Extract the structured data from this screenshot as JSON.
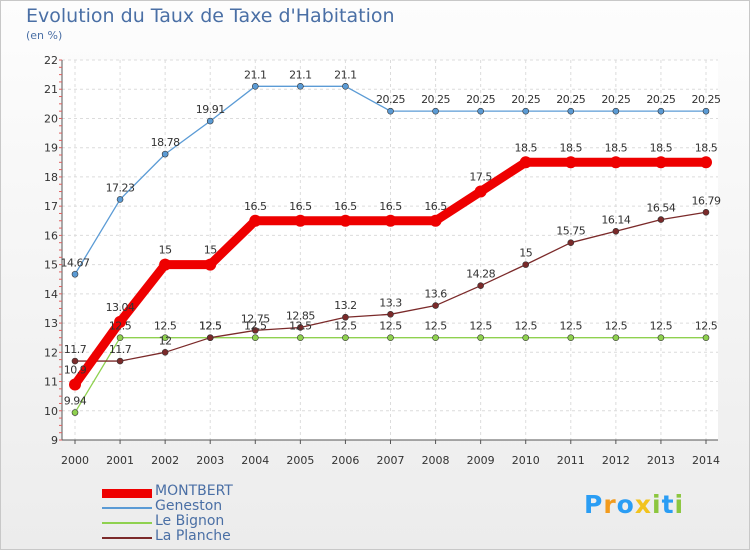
{
  "chart_data": {
    "type": "line",
    "title": "Evolution du Taux de Taxe d'Habitation",
    "subtitle": "(en %)",
    "ylim": [
      9,
      22
    ],
    "yticks": [
      9,
      10,
      11,
      12,
      13,
      14,
      15,
      16,
      17,
      18,
      19,
      20,
      21,
      22
    ],
    "categories": [
      "2000",
      "2001",
      "2002",
      "2003",
      "2004",
      "2005",
      "2006",
      "2007",
      "2008",
      "2009",
      "2010",
      "2011",
      "2012",
      "2013",
      "2014"
    ],
    "series": [
      {
        "name": "MONTBERT",
        "color": "#ee0000",
        "emphasis": true,
        "values": [
          10.9,
          13.04,
          15,
          15,
          16.5,
          16.5,
          16.5,
          16.5,
          16.5,
          17.5,
          18.5,
          18.5,
          18.5,
          18.5,
          18.5
        ],
        "labels": [
          "10.9",
          "13.04",
          "15",
          "15",
          "16.5",
          "16.5",
          "16.5",
          "16.5",
          "16.5",
          "17.5",
          "18.5",
          "18.5",
          "18.5",
          "18.5",
          "18.5"
        ]
      },
      {
        "name": "Geneston",
        "color": "#5b9bd5",
        "values": [
          14.67,
          17.23,
          18.78,
          19.91,
          21.1,
          21.1,
          21.1,
          20.25,
          20.25,
          20.25,
          20.25,
          20.25,
          20.25,
          20.25,
          20.25
        ],
        "labels": [
          "14.67",
          "17.23",
          "18.78",
          "19.91",
          "21.1",
          "21.1",
          "21.1",
          "20.25",
          "20.25",
          "20.25",
          "20.25",
          "20.25",
          "20.25",
          "20.25",
          "20.25"
        ]
      },
      {
        "name": "Le Bignon",
        "color": "#8fd14f",
        "values": [
          9.94,
          12.5,
          12.5,
          12.5,
          12.5,
          12.5,
          12.5,
          12.5,
          12.5,
          12.5,
          12.5,
          12.5,
          12.5,
          12.5,
          12.5
        ],
        "labels": [
          "9.94",
          "12.5",
          "12.5",
          "12.5",
          "12.5",
          "12.5",
          "12.5",
          "12.5",
          "12.5",
          "12.5",
          "12.5",
          "12.5",
          "12.5",
          "12.5",
          "12.5"
        ]
      },
      {
        "name": "La Planche",
        "color": "#7b2a2a",
        "values": [
          11.7,
          11.7,
          12,
          12.5,
          12.75,
          12.85,
          13.2,
          13.3,
          13.6,
          14.28,
          15,
          15.75,
          16.14,
          16.54,
          16.79
        ],
        "labels": [
          "11.7",
          "11.7",
          "12",
          "12.5",
          "12.75",
          "12.85",
          "13.2",
          "13.3",
          "13.6",
          "14.28",
          "15",
          "15.75",
          "16.14",
          "16.54",
          "16.79"
        ]
      }
    ],
    "legend": [
      "MONTBERT",
      "Geneston",
      "Le Bignon",
      "La Planche"
    ]
  },
  "brand": {
    "letters": [
      "P",
      "r",
      "o",
      "x",
      "i",
      "t",
      "i"
    ],
    "colors": [
      "#2a9df4",
      "#f29b1d",
      "#2a9df4",
      "#f2c31d",
      "#8cc63f",
      "#2a9df4",
      "#8cc63f"
    ]
  }
}
